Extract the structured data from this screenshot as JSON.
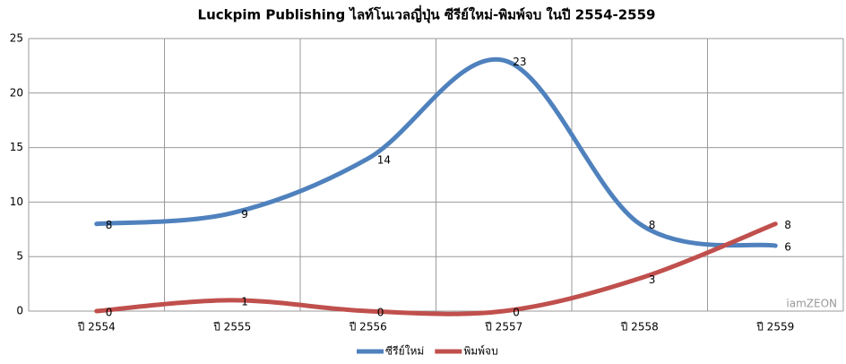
{
  "chart_data": {
    "type": "line",
    "title": "Luckpim Publishing ไลท์โนเวลญี่ปุ่น ซีรีย์ใหม่-พิมพ์จบ ในปี 2554-2559",
    "categories": [
      "ปี 2554",
      "ปี 2555",
      "ปี 2556",
      "ปี 2557",
      "ปี 2558",
      "ปี 2559"
    ],
    "series": [
      {
        "name": "ซีรีย์ใหม่",
        "color": "#4f81bd",
        "values": [
          8,
          9,
          14,
          23,
          8,
          6
        ]
      },
      {
        "name": "พิมพ์จบ",
        "color": "#c0504d",
        "values": [
          0,
          1,
          0,
          0,
          3,
          8
        ]
      }
    ],
    "ylim": [
      0,
      25
    ],
    "yticks": [
      0,
      5,
      10,
      15,
      20,
      25
    ],
    "grid": true,
    "smooth": true,
    "legend": "bottom",
    "watermark": "iamZEON"
  }
}
